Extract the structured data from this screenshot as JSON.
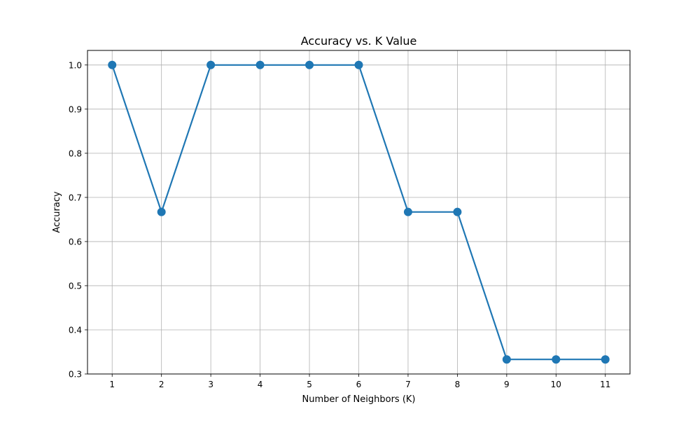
{
  "chart_data": {
    "type": "line",
    "title": "Accuracy vs. K Value",
    "xlabel": "Number of Neighbors (K)",
    "ylabel": "Accuracy",
    "x": [
      1,
      2,
      3,
      4,
      5,
      6,
      7,
      8,
      9,
      10,
      11
    ],
    "series": [
      {
        "values": [
          1.0,
          0.667,
          1.0,
          1.0,
          1.0,
          1.0,
          0.667,
          0.667,
          0.333,
          0.333,
          0.333
        ],
        "color": "#1f77b4",
        "marker": "circle"
      }
    ],
    "xlim": [
      0.5,
      11.5
    ],
    "ylim": [
      0.3,
      1.033
    ],
    "xticks": [
      1,
      2,
      3,
      4,
      5,
      6,
      7,
      8,
      9,
      10,
      11
    ],
    "yticks": [
      "0.3",
      "0.4",
      "0.5",
      "0.6",
      "0.7",
      "0.8",
      "0.9",
      "1.0"
    ],
    "grid": true,
    "legend": false
  }
}
